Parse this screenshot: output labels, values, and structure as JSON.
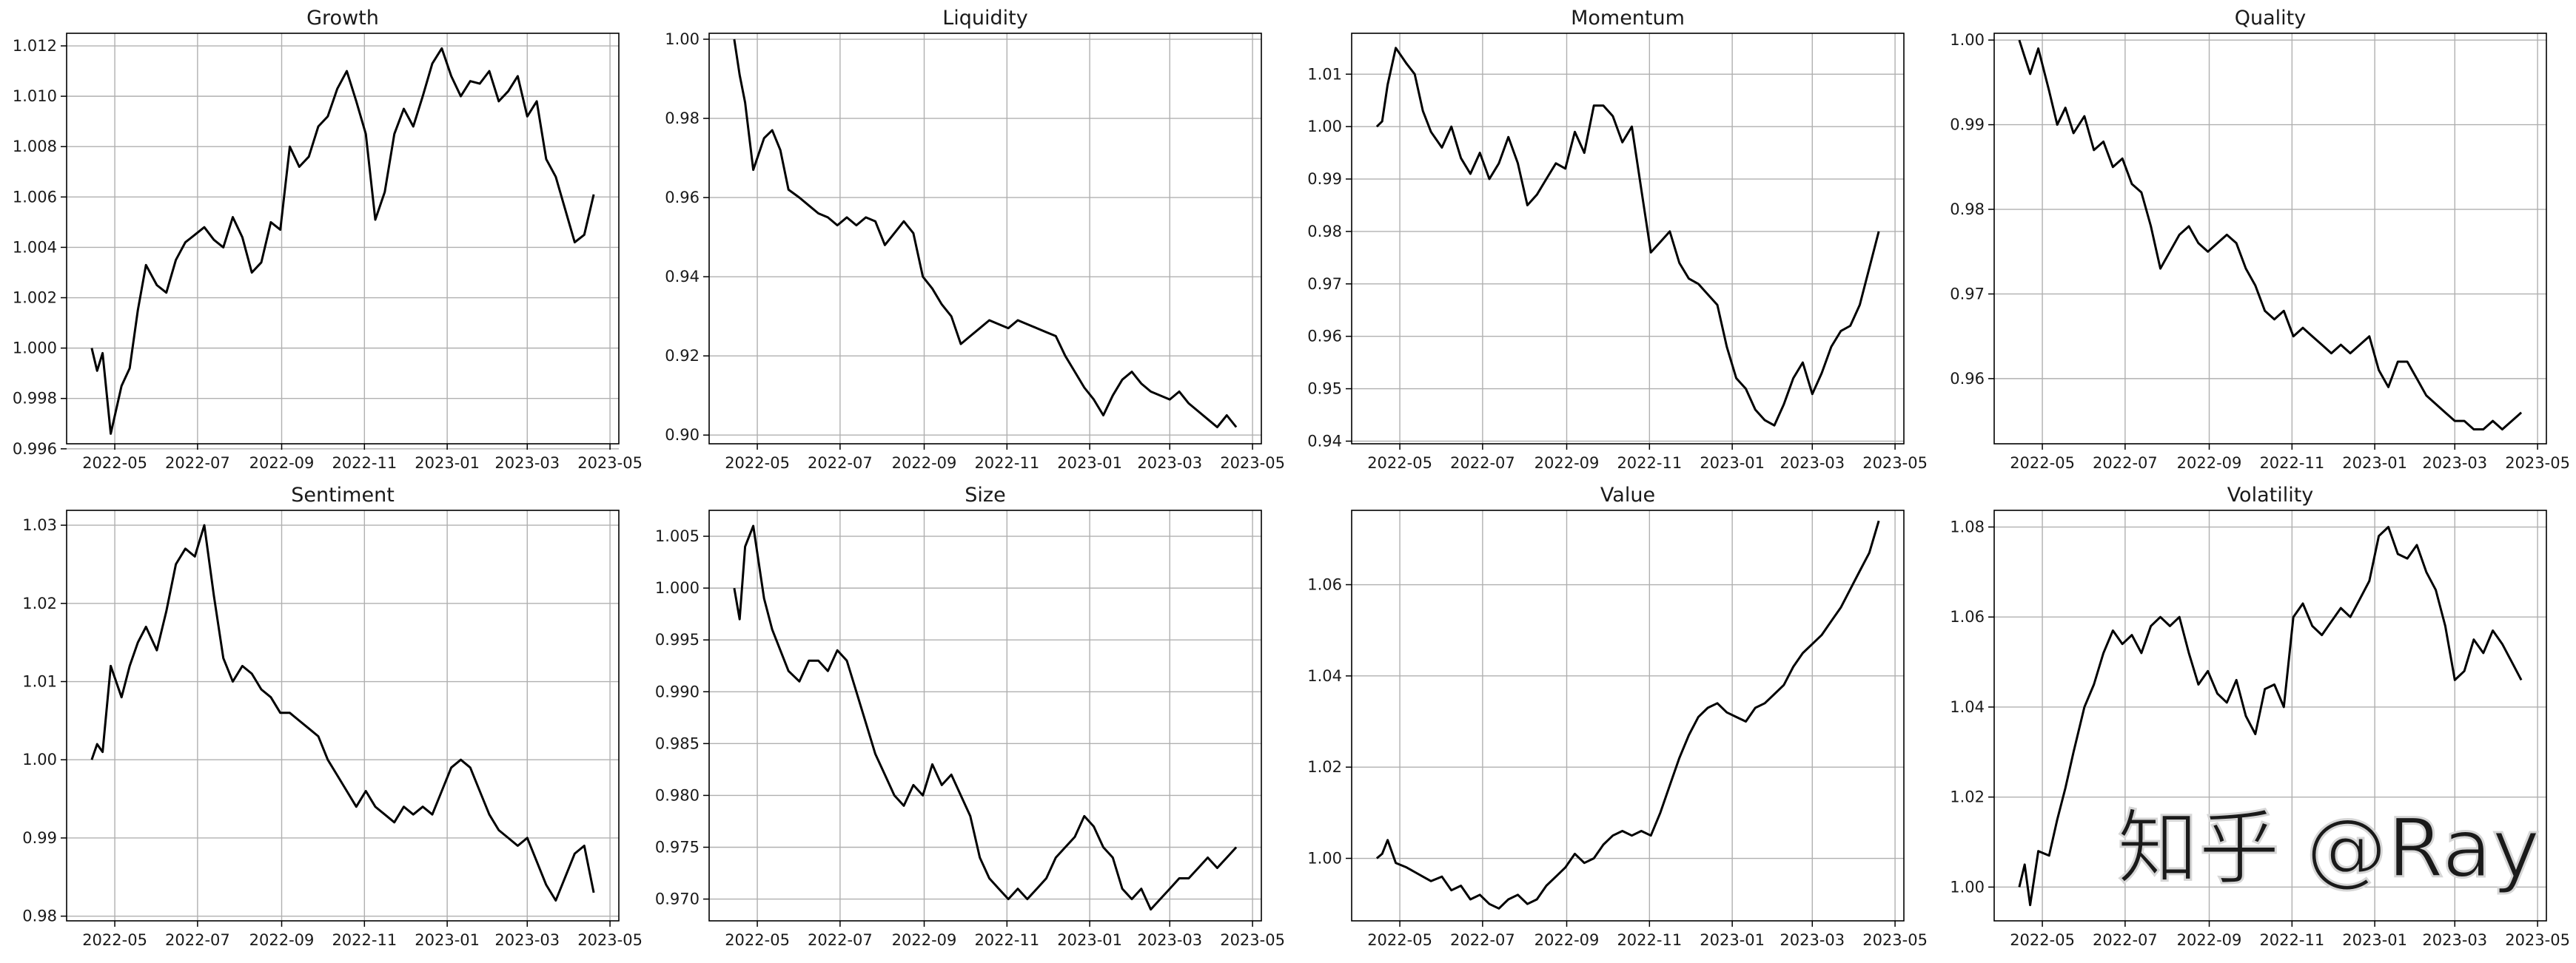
{
  "watermark": "知乎 @Ray",
  "colors": {
    "line": "#000000",
    "grid": "#b0b0b0",
    "axes": "#000000",
    "background": "#ffffff"
  },
  "x_ticks": [
    "2022-05",
    "2022-07",
    "2022-09",
    "2022-11",
    "2023-01",
    "2023-03",
    "2023-05"
  ],
  "chart_data": [
    {
      "type": "line",
      "title": "Growth",
      "grid": true,
      "x_range": [
        "2022-04-14",
        "2023-04-19"
      ],
      "ylim": [
        0.9962,
        1.0125
      ],
      "yticks": [
        "0.996",
        "0.998",
        "1.000",
        "1.002",
        "1.004",
        "1.006",
        "1.008",
        "1.010",
        "1.012"
      ],
      "x": [
        "2022-04-14",
        "2022-04-18",
        "2022-04-22",
        "2022-04-28",
        "2022-05-06",
        "2022-05-12",
        "2022-05-18",
        "2022-05-24",
        "2022-06-01",
        "2022-06-08",
        "2022-06-15",
        "2022-06-22",
        "2022-06-29",
        "2022-07-06",
        "2022-07-13",
        "2022-07-20",
        "2022-07-27",
        "2022-08-03",
        "2022-08-10",
        "2022-08-17",
        "2022-08-24",
        "2022-08-31",
        "2022-09-07",
        "2022-09-14",
        "2022-09-21",
        "2022-09-28",
        "2022-10-05",
        "2022-10-12",
        "2022-10-19",
        "2022-10-26",
        "2022-11-02",
        "2022-11-09",
        "2022-11-16",
        "2022-11-23",
        "2022-11-30",
        "2022-12-07",
        "2022-12-14",
        "2022-12-21",
        "2022-12-28",
        "2023-01-04",
        "2023-01-11",
        "2023-01-18",
        "2023-01-25",
        "2023-02-01",
        "2023-02-08",
        "2023-02-15",
        "2023-02-22",
        "2023-03-01",
        "2023-03-08",
        "2023-03-15",
        "2023-03-22",
        "2023-03-29",
        "2023-04-05",
        "2023-04-12",
        "2023-04-19"
      ],
      "y": [
        1.0,
        0.9991,
        0.9998,
        0.9966,
        0.9985,
        0.9992,
        1.0015,
        1.0033,
        1.0025,
        1.0022,
        1.0035,
        1.0042,
        1.0045,
        1.0048,
        1.0043,
        1.004,
        1.0052,
        1.0044,
        1.003,
        1.0034,
        1.005,
        1.0047,
        1.008,
        1.0072,
        1.0076,
        1.0088,
        1.0092,
        1.0103,
        1.011,
        1.0098,
        1.0085,
        1.0051,
        1.0062,
        1.0085,
        1.0095,
        1.0088,
        1.01,
        1.0113,
        1.0119,
        1.0108,
        1.01,
        1.0106,
        1.0105,
        1.011,
        1.0098,
        1.0102,
        1.0108,
        1.0092,
        1.0098,
        1.0075,
        1.0068,
        1.0055,
        1.0042,
        1.0045,
        1.0061
      ]
    },
    {
      "type": "line",
      "title": "Liquidity",
      "grid": true,
      "x_range": [
        "2022-04-14",
        "2023-04-19"
      ],
      "ylim": [
        0.8978,
        1.0015
      ],
      "yticks": [
        "0.90",
        "0.92",
        "0.94",
        "0.96",
        "0.98",
        "1.00"
      ],
      "x": [
        "2022-04-14",
        "2022-04-18",
        "2022-04-22",
        "2022-04-28",
        "2022-05-06",
        "2022-05-12",
        "2022-05-18",
        "2022-05-24",
        "2022-06-01",
        "2022-06-08",
        "2022-06-15",
        "2022-06-22",
        "2022-06-29",
        "2022-07-06",
        "2022-07-13",
        "2022-07-20",
        "2022-07-27",
        "2022-08-03",
        "2022-08-10",
        "2022-08-17",
        "2022-08-24",
        "2022-08-31",
        "2022-09-07",
        "2022-09-14",
        "2022-09-21",
        "2022-09-28",
        "2022-10-05",
        "2022-10-12",
        "2022-10-19",
        "2022-10-26",
        "2022-11-02",
        "2022-11-09",
        "2022-11-16",
        "2022-11-23",
        "2022-11-30",
        "2022-12-07",
        "2022-12-14",
        "2022-12-21",
        "2022-12-28",
        "2023-01-04",
        "2023-01-11",
        "2023-01-18",
        "2023-01-25",
        "2023-02-01",
        "2023-02-08",
        "2023-02-15",
        "2023-02-22",
        "2023-03-01",
        "2023-03-08",
        "2023-03-15",
        "2023-03-22",
        "2023-03-29",
        "2023-04-05",
        "2023-04-12",
        "2023-04-19"
      ],
      "y": [
        1.0,
        0.991,
        0.984,
        0.967,
        0.975,
        0.977,
        0.972,
        0.962,
        0.96,
        0.958,
        0.956,
        0.955,
        0.953,
        0.955,
        0.953,
        0.955,
        0.954,
        0.948,
        0.951,
        0.954,
        0.951,
        0.94,
        0.937,
        0.933,
        0.93,
        0.923,
        0.925,
        0.927,
        0.929,
        0.928,
        0.927,
        0.929,
        0.928,
        0.927,
        0.926,
        0.925,
        0.92,
        0.916,
        0.912,
        0.909,
        0.905,
        0.91,
        0.914,
        0.916,
        0.913,
        0.911,
        0.91,
        0.909,
        0.911,
        0.908,
        0.906,
        0.904,
        0.902,
        0.905,
        0.902
      ]
    },
    {
      "type": "line",
      "title": "Momentum",
      "grid": true,
      "x_range": [
        "2022-04-14",
        "2023-04-19"
      ],
      "ylim": [
        0.9395,
        1.0178
      ],
      "yticks": [
        "0.94",
        "0.95",
        "0.96",
        "0.97",
        "0.98",
        "0.99",
        "1.00",
        "1.01"
      ],
      "x": [
        "2022-04-14",
        "2022-04-18",
        "2022-04-22",
        "2022-04-28",
        "2022-05-06",
        "2022-05-12",
        "2022-05-18",
        "2022-05-24",
        "2022-06-01",
        "2022-06-08",
        "2022-06-15",
        "2022-06-22",
        "2022-06-29",
        "2022-07-06",
        "2022-07-13",
        "2022-07-20",
        "2022-07-27",
        "2022-08-03",
        "2022-08-10",
        "2022-08-17",
        "2022-08-24",
        "2022-08-31",
        "2022-09-07",
        "2022-09-14",
        "2022-09-21",
        "2022-09-28",
        "2022-10-05",
        "2022-10-12",
        "2022-10-19",
        "2022-10-26",
        "2022-11-02",
        "2022-11-09",
        "2022-11-16",
        "2022-11-23",
        "2022-11-30",
        "2022-12-07",
        "2022-12-14",
        "2022-12-21",
        "2022-12-28",
        "2023-01-04",
        "2023-01-11",
        "2023-01-18",
        "2023-01-25",
        "2023-02-01",
        "2023-02-08",
        "2023-02-15",
        "2023-02-22",
        "2023-03-01",
        "2023-03-08",
        "2023-03-15",
        "2023-03-22",
        "2023-03-29",
        "2023-04-05",
        "2023-04-12",
        "2023-04-19"
      ],
      "y": [
        1.0,
        1.001,
        1.008,
        1.015,
        1.012,
        1.01,
        1.003,
        0.999,
        0.996,
        1.0,
        0.994,
        0.991,
        0.995,
        0.99,
        0.993,
        0.998,
        0.993,
        0.985,
        0.987,
        0.99,
        0.993,
        0.992,
        0.999,
        0.995,
        1.004,
        1.004,
        1.002,
        0.997,
        1.0,
        0.988,
        0.976,
        0.978,
        0.98,
        0.974,
        0.971,
        0.97,
        0.968,
        0.966,
        0.958,
        0.952,
        0.95,
        0.946,
        0.944,
        0.943,
        0.947,
        0.952,
        0.955,
        0.949,
        0.953,
        0.958,
        0.961,
        0.962,
        0.966,
        0.973,
        0.98
      ]
    },
    {
      "type": "line",
      "title": "Quality",
      "grid": true,
      "x_range": [
        "2022-04-14",
        "2023-04-19"
      ],
      "ylim": [
        0.9523,
        1.0008
      ],
      "yticks": [
        "0.96",
        "0.97",
        "0.98",
        "0.99",
        "1.00"
      ],
      "x": [
        "2022-04-14",
        "2022-04-18",
        "2022-04-22",
        "2022-04-28",
        "2022-05-06",
        "2022-05-12",
        "2022-05-18",
        "2022-05-24",
        "2022-06-01",
        "2022-06-08",
        "2022-06-15",
        "2022-06-22",
        "2022-06-29",
        "2022-07-06",
        "2022-07-13",
        "2022-07-20",
        "2022-07-27",
        "2022-08-03",
        "2022-08-10",
        "2022-08-17",
        "2022-08-24",
        "2022-08-31",
        "2022-09-07",
        "2022-09-14",
        "2022-09-21",
        "2022-09-28",
        "2022-10-05",
        "2022-10-12",
        "2022-10-19",
        "2022-10-26",
        "2022-11-02",
        "2022-11-09",
        "2022-11-16",
        "2022-11-23",
        "2022-11-30",
        "2022-12-07",
        "2022-12-14",
        "2022-12-21",
        "2022-12-28",
        "2023-01-04",
        "2023-01-11",
        "2023-01-18",
        "2023-01-25",
        "2023-02-01",
        "2023-02-08",
        "2023-02-15",
        "2023-02-22",
        "2023-03-01",
        "2023-03-08",
        "2023-03-15",
        "2023-03-22",
        "2023-03-29",
        "2023-04-05",
        "2023-04-12",
        "2023-04-19"
      ],
      "y": [
        1.0,
        0.998,
        0.996,
        0.999,
        0.994,
        0.99,
        0.992,
        0.989,
        0.991,
        0.987,
        0.988,
        0.985,
        0.986,
        0.983,
        0.982,
        0.978,
        0.973,
        0.975,
        0.977,
        0.978,
        0.976,
        0.975,
        0.976,
        0.977,
        0.976,
        0.973,
        0.971,
        0.968,
        0.967,
        0.968,
        0.965,
        0.966,
        0.965,
        0.964,
        0.963,
        0.964,
        0.963,
        0.964,
        0.965,
        0.961,
        0.959,
        0.962,
        0.962,
        0.96,
        0.958,
        0.957,
        0.956,
        0.955,
        0.955,
        0.954,
        0.954,
        0.955,
        0.954,
        0.955,
        0.956
      ]
    },
    {
      "type": "line",
      "title": "Sentiment",
      "grid": true,
      "x_range": [
        "2022-04-14",
        "2023-04-19"
      ],
      "ylim": [
        0.9794,
        1.0319
      ],
      "yticks": [
        "0.98",
        "0.99",
        "1.00",
        "1.01",
        "1.02",
        "1.03"
      ],
      "x": [
        "2022-04-14",
        "2022-04-18",
        "2022-04-22",
        "2022-04-28",
        "2022-05-06",
        "2022-05-12",
        "2022-05-18",
        "2022-05-24",
        "2022-06-01",
        "2022-06-08",
        "2022-06-15",
        "2022-06-22",
        "2022-06-29",
        "2022-07-06",
        "2022-07-13",
        "2022-07-20",
        "2022-07-27",
        "2022-08-03",
        "2022-08-10",
        "2022-08-17",
        "2022-08-24",
        "2022-08-31",
        "2022-09-07",
        "2022-09-14",
        "2022-09-21",
        "2022-09-28",
        "2022-10-05",
        "2022-10-12",
        "2022-10-19",
        "2022-10-26",
        "2022-11-02",
        "2022-11-09",
        "2022-11-16",
        "2022-11-23",
        "2022-11-30",
        "2022-12-07",
        "2022-12-14",
        "2022-12-21",
        "2022-12-28",
        "2023-01-04",
        "2023-01-11",
        "2023-01-18",
        "2023-01-25",
        "2023-02-01",
        "2023-02-08",
        "2023-02-15",
        "2023-02-22",
        "2023-03-01",
        "2023-03-08",
        "2023-03-15",
        "2023-03-22",
        "2023-03-29",
        "2023-04-05",
        "2023-04-12",
        "2023-04-19"
      ],
      "y": [
        1.0,
        1.002,
        1.001,
        1.012,
        1.008,
        1.012,
        1.015,
        1.017,
        1.014,
        1.019,
        1.025,
        1.027,
        1.026,
        1.03,
        1.021,
        1.013,
        1.01,
        1.012,
        1.011,
        1.009,
        1.008,
        1.006,
        1.006,
        1.005,
        1.004,
        1.003,
        1.0,
        0.998,
        0.996,
        0.994,
        0.996,
        0.994,
        0.993,
        0.992,
        0.994,
        0.993,
        0.994,
        0.993,
        0.996,
        0.999,
        1.0,
        0.999,
        0.996,
        0.993,
        0.991,
        0.99,
        0.989,
        0.99,
        0.987,
        0.984,
        0.982,
        0.985,
        0.988,
        0.989,
        0.983
      ]
    },
    {
      "type": "line",
      "title": "Size",
      "grid": true,
      "x_range": [
        "2022-04-14",
        "2023-04-19"
      ],
      "ylim": [
        0.9679,
        1.0075
      ],
      "yticks": [
        "0.970",
        "0.975",
        "0.980",
        "0.985",
        "0.990",
        "0.995",
        "1.000",
        "1.005"
      ],
      "x": [
        "2022-04-14",
        "2022-04-18",
        "2022-04-22",
        "2022-04-28",
        "2022-05-06",
        "2022-05-12",
        "2022-05-18",
        "2022-05-24",
        "2022-06-01",
        "2022-06-08",
        "2022-06-15",
        "2022-06-22",
        "2022-06-29",
        "2022-07-06",
        "2022-07-13",
        "2022-07-20",
        "2022-07-27",
        "2022-08-03",
        "2022-08-10",
        "2022-08-17",
        "2022-08-24",
        "2022-08-31",
        "2022-09-07",
        "2022-09-14",
        "2022-09-21",
        "2022-09-28",
        "2022-10-05",
        "2022-10-12",
        "2022-10-19",
        "2022-10-26",
        "2022-11-02",
        "2022-11-09",
        "2022-11-16",
        "2022-11-23",
        "2022-11-30",
        "2022-12-07",
        "2022-12-14",
        "2022-12-21",
        "2022-12-28",
        "2023-01-04",
        "2023-01-11",
        "2023-01-18",
        "2023-01-25",
        "2023-02-01",
        "2023-02-08",
        "2023-02-15",
        "2023-02-22",
        "2023-03-01",
        "2023-03-08",
        "2023-03-15",
        "2023-03-22",
        "2023-03-29",
        "2023-04-05",
        "2023-04-12",
        "2023-04-19"
      ],
      "y": [
        1.0,
        0.997,
        1.004,
        1.006,
        0.999,
        0.996,
        0.994,
        0.992,
        0.991,
        0.993,
        0.993,
        0.992,
        0.994,
        0.993,
        0.99,
        0.987,
        0.984,
        0.982,
        0.98,
        0.979,
        0.981,
        0.98,
        0.983,
        0.981,
        0.982,
        0.98,
        0.978,
        0.974,
        0.972,
        0.971,
        0.97,
        0.971,
        0.97,
        0.971,
        0.972,
        0.974,
        0.975,
        0.976,
        0.978,
        0.977,
        0.975,
        0.974,
        0.971,
        0.97,
        0.971,
        0.969,
        0.97,
        0.971,
        0.972,
        0.972,
        0.973,
        0.974,
        0.973,
        0.974,
        0.975
      ]
    },
    {
      "type": "line",
      "title": "Value",
      "grid": true,
      "x_range": [
        "2022-04-14",
        "2023-04-19"
      ],
      "ylim": [
        0.9863,
        1.0763
      ],
      "yticks": [
        "1.00",
        "1.02",
        "1.04",
        "1.06"
      ],
      "x": [
        "2022-04-14",
        "2022-04-18",
        "2022-04-22",
        "2022-04-28",
        "2022-05-06",
        "2022-05-12",
        "2022-05-18",
        "2022-05-24",
        "2022-06-01",
        "2022-06-08",
        "2022-06-15",
        "2022-06-22",
        "2022-06-29",
        "2022-07-06",
        "2022-07-13",
        "2022-07-20",
        "2022-07-27",
        "2022-08-03",
        "2022-08-10",
        "2022-08-17",
        "2022-08-24",
        "2022-08-31",
        "2022-09-07",
        "2022-09-14",
        "2022-09-21",
        "2022-09-28",
        "2022-10-05",
        "2022-10-12",
        "2022-10-19",
        "2022-10-26",
        "2022-11-02",
        "2022-11-09",
        "2022-11-16",
        "2022-11-23",
        "2022-11-30",
        "2022-12-07",
        "2022-12-14",
        "2022-12-21",
        "2022-12-28",
        "2023-01-04",
        "2023-01-11",
        "2023-01-18",
        "2023-01-25",
        "2023-02-01",
        "2023-02-08",
        "2023-02-15",
        "2023-02-22",
        "2023-03-01",
        "2023-03-08",
        "2023-03-15",
        "2023-03-22",
        "2023-03-29",
        "2023-04-05",
        "2023-04-12",
        "2023-04-19"
      ],
      "y": [
        1.0,
        1.001,
        1.004,
        0.999,
        0.998,
        0.997,
        0.996,
        0.995,
        0.996,
        0.993,
        0.994,
        0.991,
        0.992,
        0.99,
        0.989,
        0.991,
        0.992,
        0.99,
        0.991,
        0.994,
        0.996,
        0.998,
        1.001,
        0.999,
        1.0,
        1.003,
        1.005,
        1.006,
        1.005,
        1.006,
        1.005,
        1.01,
        1.016,
        1.022,
        1.027,
        1.031,
        1.033,
        1.034,
        1.032,
        1.031,
        1.03,
        1.033,
        1.034,
        1.036,
        1.038,
        1.042,
        1.045,
        1.047,
        1.049,
        1.052,
        1.055,
        1.059,
        1.063,
        1.067,
        1.074
      ]
    },
    {
      "type": "line",
      "title": "Volatility",
      "grid": true,
      "x_range": [
        "2022-04-14",
        "2023-04-19"
      ],
      "ylim": [
        0.9925,
        1.0837
      ],
      "yticks": [
        "1.00",
        "1.02",
        "1.04",
        "1.06",
        "1.08"
      ],
      "x": [
        "2022-04-14",
        "2022-04-18",
        "2022-04-22",
        "2022-04-28",
        "2022-05-06",
        "2022-05-12",
        "2022-05-18",
        "2022-05-24",
        "2022-06-01",
        "2022-06-08",
        "2022-06-15",
        "2022-06-22",
        "2022-06-29",
        "2022-07-06",
        "2022-07-13",
        "2022-07-20",
        "2022-07-27",
        "2022-08-03",
        "2022-08-10",
        "2022-08-17",
        "2022-08-24",
        "2022-08-31",
        "2022-09-07",
        "2022-09-14",
        "2022-09-21",
        "2022-09-28",
        "2022-10-05",
        "2022-10-12",
        "2022-10-19",
        "2022-10-26",
        "2022-11-02",
        "2022-11-09",
        "2022-11-16",
        "2022-11-23",
        "2022-11-30",
        "2022-12-07",
        "2022-12-14",
        "2022-12-21",
        "2022-12-28",
        "2023-01-04",
        "2023-01-11",
        "2023-01-18",
        "2023-01-25",
        "2023-02-01",
        "2023-02-08",
        "2023-02-15",
        "2023-02-22",
        "2023-03-01",
        "2023-03-08",
        "2023-03-15",
        "2023-03-22",
        "2023-03-29",
        "2023-04-05",
        "2023-04-12",
        "2023-04-19"
      ],
      "y": [
        1.0,
        1.005,
        0.996,
        1.008,
        1.007,
        1.015,
        1.022,
        1.03,
        1.04,
        1.045,
        1.052,
        1.057,
        1.054,
        1.056,
        1.052,
        1.058,
        1.06,
        1.058,
        1.06,
        1.052,
        1.045,
        1.048,
        1.043,
        1.041,
        1.046,
        1.038,
        1.034,
        1.044,
        1.045,
        1.04,
        1.06,
        1.063,
        1.058,
        1.056,
        1.059,
        1.062,
        1.06,
        1.064,
        1.068,
        1.078,
        1.08,
        1.074,
        1.073,
        1.076,
        1.07,
        1.066,
        1.058,
        1.046,
        1.048,
        1.055,
        1.052,
        1.057,
        1.054,
        1.05,
        1.046
      ]
    }
  ]
}
